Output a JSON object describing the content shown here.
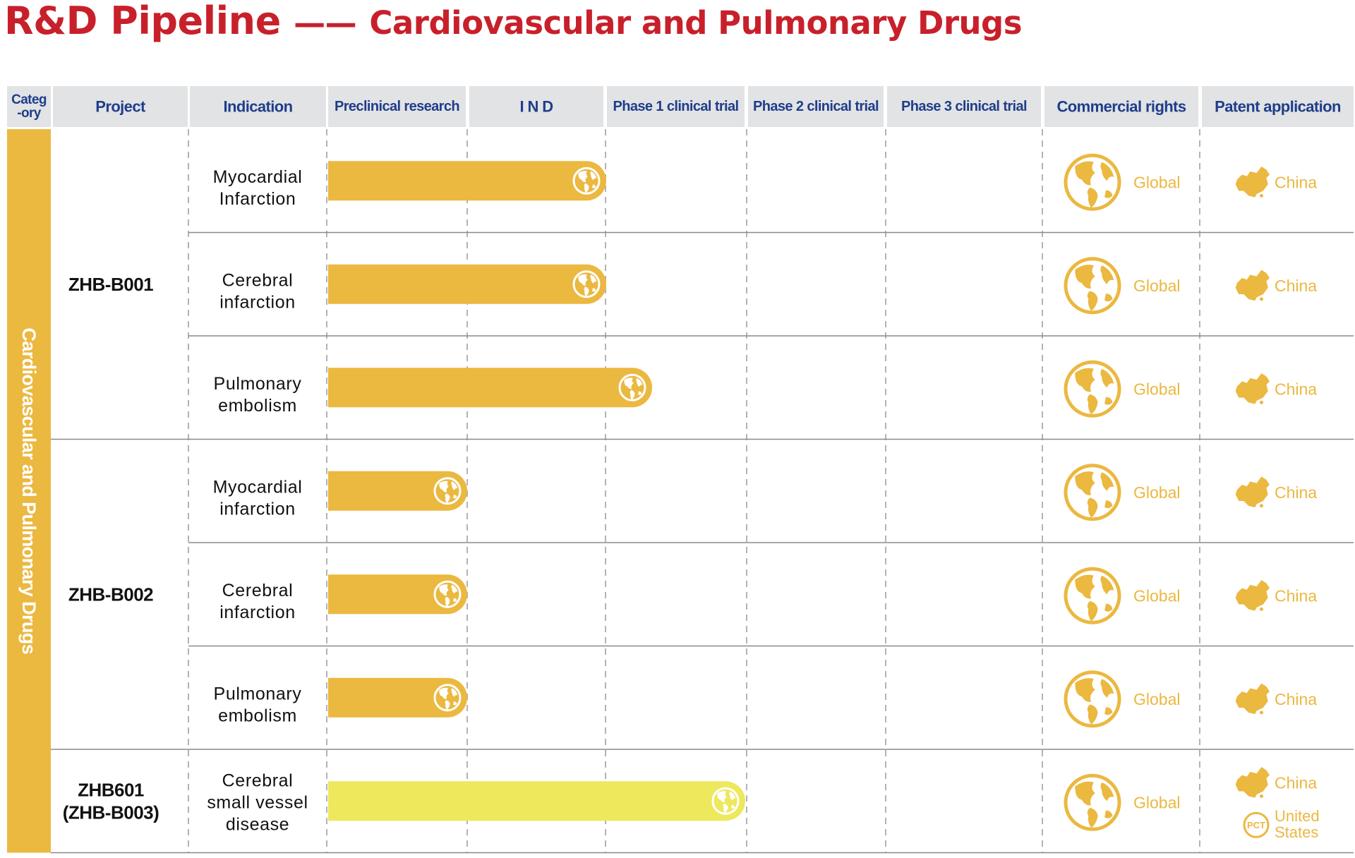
{
  "title": "R&D Pipeline",
  "title_separator": "——",
  "subtitle": "Cardiovascular and Pulmonary Drugs",
  "colors": {
    "accent": "#c8202b",
    "bar": "#ebb840",
    "bar_light": "#ede85c",
    "header_bg": "#e2e3e5",
    "header_text": "#1f3d8a"
  },
  "header": {
    "category": [
      "Categ",
      "-ory"
    ],
    "project": "Project",
    "indication": "Indication",
    "stages": [
      "Preclinical research",
      "I N D",
      "Phase 1 clinical trial",
      "Phase 2 clinical trial",
      "Phase 3 clinical trial"
    ],
    "commercial": "Commercial rights",
    "patent": "Patent application"
  },
  "category_label": "Cardiovascular and Pulmonary Drugs",
  "chart_data": {
    "type": "bar",
    "stages": [
      "Preclinical research",
      "IND",
      "Phase 1 clinical trial",
      "Phase 2 clinical trial",
      "Phase 3 clinical trial"
    ],
    "projects": [
      {
        "name": [
          "ZHB-B001"
        ],
        "rows": [
          0,
          1,
          2
        ]
      },
      {
        "name": [
          "ZHB-B002"
        ],
        "rows": [
          3,
          4,
          5
        ]
      },
      {
        "name": [
          "ZHB601",
          "(ZHB-B003)"
        ],
        "rows": [
          6
        ]
      }
    ],
    "rows": [
      {
        "indication": [
          "Myocardial",
          "Infarction"
        ],
        "progress": 2.0,
        "color": "bar",
        "commercial": "Global",
        "patents": [
          {
            "icon": "china-map-icon",
            "text": [
              "China"
            ]
          }
        ]
      },
      {
        "indication": [
          "Cerebral",
          "infarction"
        ],
        "progress": 2.0,
        "color": "bar",
        "commercial": "Global",
        "patents": [
          {
            "icon": "china-map-icon",
            "text": [
              "China"
            ]
          }
        ]
      },
      {
        "indication": [
          "Pulmonary",
          "embolism"
        ],
        "progress": 2.33,
        "color": "bar",
        "commercial": "Global",
        "patents": [
          {
            "icon": "china-map-icon",
            "text": [
              "China"
            ]
          }
        ]
      },
      {
        "indication": [
          "Myocardial",
          "infarction"
        ],
        "progress": 1.0,
        "color": "bar",
        "commercial": "Global",
        "patents": [
          {
            "icon": "china-map-icon",
            "text": [
              "China"
            ]
          }
        ]
      },
      {
        "indication": [
          "Cerebral",
          "infarction"
        ],
        "progress": 1.0,
        "color": "bar",
        "commercial": "Global",
        "patents": [
          {
            "icon": "china-map-icon",
            "text": [
              "China"
            ]
          }
        ]
      },
      {
        "indication": [
          "Pulmonary",
          "embolism"
        ],
        "progress": 1.0,
        "color": "bar",
        "commercial": "Global",
        "patents": [
          {
            "icon": "china-map-icon",
            "text": [
              "China"
            ]
          }
        ]
      },
      {
        "indication": [
          "Cerebral",
          "small vessel",
          "disease"
        ],
        "progress": 3.0,
        "color": "bar_light",
        "commercial": "Global",
        "patents": [
          {
            "icon": "china-map-icon",
            "text": [
              "China"
            ]
          },
          {
            "icon": "pct-icon",
            "icon_text": "PCT",
            "text": [
              "United",
              "States"
            ]
          }
        ]
      }
    ]
  }
}
